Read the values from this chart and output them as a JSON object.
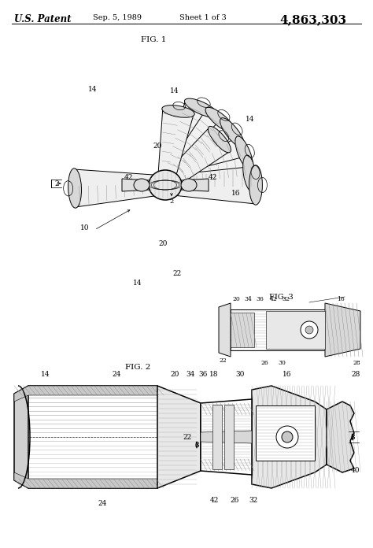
{
  "title_left": "U.S. Patent",
  "title_date": "Sep. 5, 1989",
  "title_sheet": "Sheet 1 of 3",
  "title_number": "4,863,303",
  "fig1_label": "FIG. 1",
  "fig2_label": "FIG. 2",
  "fig3_label": "FIG. 3",
  "bg_color": "#ffffff",
  "line_color": "#000000",
  "fig_width": 4.74,
  "fig_height": 6.96,
  "dpi": 100
}
